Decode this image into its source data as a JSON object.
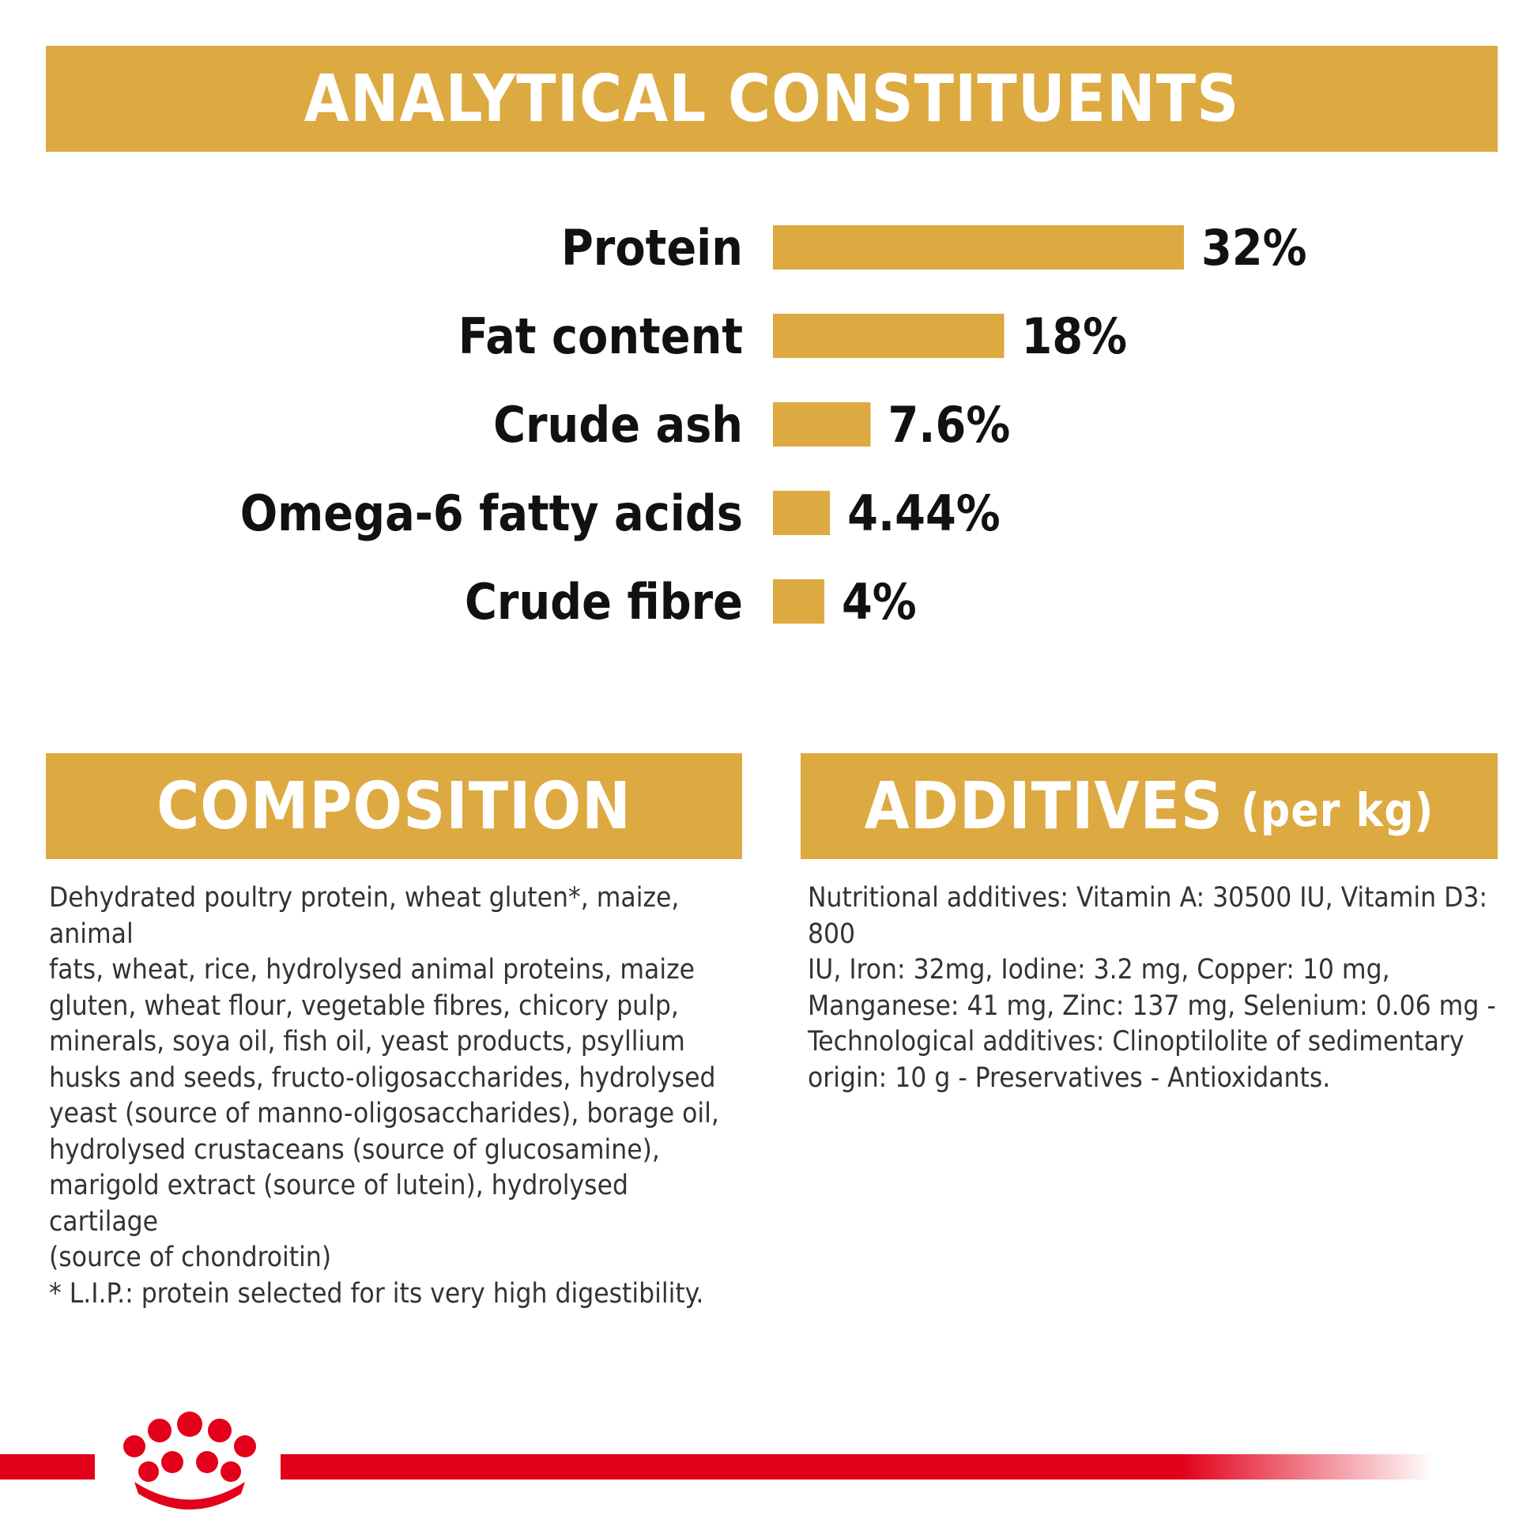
{
  "analytical_constituents": {
    "title": "ANALYTICAL CONSTITUENTS"
  },
  "chart_data": {
    "type": "bar",
    "orientation": "horizontal",
    "categories": [
      "Protein",
      "Fat content",
      "Crude ash",
      "Omega-6 fatty acids",
      "Crude fibre"
    ],
    "values": [
      32,
      18,
      7.6,
      4.44,
      4
    ],
    "value_labels": [
      "32%",
      "18%",
      "7.6%",
      "4.44%",
      "4%"
    ],
    "unit": "%",
    "grid": false,
    "legend": "none"
  },
  "composition": {
    "title": "COMPOSITION",
    "text": "Dehydrated poultry protein, wheat gluten*, maize, animal\nfats, wheat, rice, hydrolysed animal proteins, maize\ngluten, wheat flour, vegetable fibres, chicory pulp,\nminerals, soya oil, fish oil, yeast products, psyllium\nhusks and seeds, fructo-oligosaccharides, hydrolysed\nyeast (source of manno-oligosaccharides), borage oil,\nhydrolysed crustaceans (source of glucosamine),\nmarigold extract (source of lutein), hydrolysed cartilage\n(source of chondroitin)\n* L.I.P.: protein selected for its very high digestibility."
  },
  "additives": {
    "title": "ADDITIVES",
    "unit": "(per kg)",
    "text": "Nutritional additives: Vitamin A: 30500 IU, Vitamin D3: 800\nIU, Iron: 32mg, Iodine: 3.2 mg, Copper: 10 mg,\nManganese: 41 mg, Zinc: 137 mg, Selenium: 0.06 mg -\nTechnological additives: Clinoptilolite of sedimentary\norigin: 10 g - Preservatives - Antioxidants."
  },
  "colors": {
    "accent": "#DDA941",
    "brand_red": "#E2001A",
    "text_dark": "#111111",
    "text_body": "#333333"
  },
  "logo": {
    "icon": "crown-logo-icon"
  }
}
